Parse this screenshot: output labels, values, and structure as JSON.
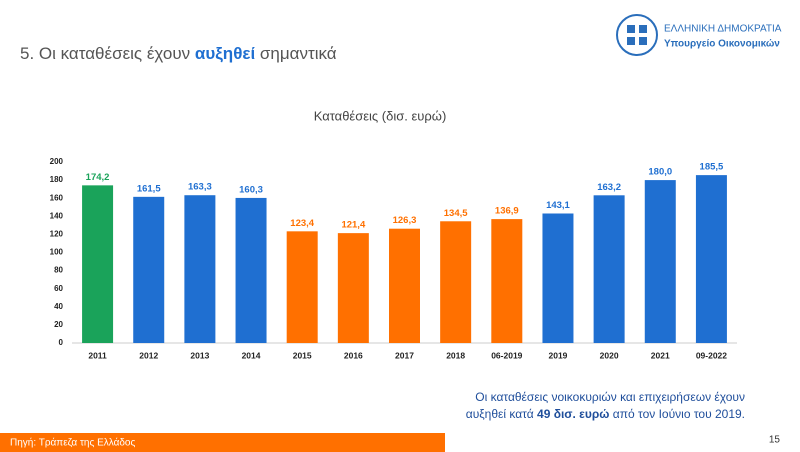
{
  "header": {
    "title_before": "5. Οι καταθέσεις έχουν",
    "title_highlight": "αυξηθεί",
    "title_after": "σημαντικά",
    "logo_line1": "ΕΛΛΗΝΙΚΗ ΔΗΜΟΚΡΑΤΙΑ",
    "logo_line2": "Υπουργείο Οικονομικών"
  },
  "chart_data": {
    "type": "bar",
    "title": "Καταθέσεις (δισ. ευρώ)",
    "categories": [
      "2011",
      "2012",
      "2013",
      "2014",
      "2015",
      "2016",
      "2017",
      "2018",
      "06-2019",
      "2019",
      "2020",
      "2021",
      "09-2022"
    ],
    "values": [
      174.2,
      161.5,
      163.3,
      160.3,
      123.4,
      121.4,
      126.3,
      134.5,
      136.9,
      143.1,
      163.2,
      180.0,
      185.5
    ],
    "value_labels": [
      "174,2",
      "161,5",
      "163,3",
      "160,3",
      "123,4",
      "121,4",
      "126,3",
      "134,5",
      "136,9",
      "143,1",
      "163,2",
      "180,0",
      "185,5"
    ],
    "colors": [
      "#1aa35a",
      "#1f6fd1",
      "#1f6fd1",
      "#1f6fd1",
      "#ff7000",
      "#ff7000",
      "#ff7000",
      "#ff7000",
      "#ff7000",
      "#1f6fd1",
      "#1f6fd1",
      "#1f6fd1",
      "#1f6fd1"
    ],
    "ylim": [
      0,
      200
    ],
    "yticks": [
      0,
      20,
      40,
      60,
      80,
      100,
      120,
      140,
      160,
      180,
      200
    ],
    "grid": false
  },
  "note": {
    "line1": "Οι καταθέσεις νοικοκυριών και επιχειρήσεων έχουν",
    "line2_before": "αυξηθεί κατά",
    "line2_bold": "49 δισ. ευρώ",
    "line2_after": "από τον Ιούνιο του 2019."
  },
  "footer": {
    "source": "Πηγή: Τράπεζα της Ελλάδος",
    "page": "15"
  }
}
